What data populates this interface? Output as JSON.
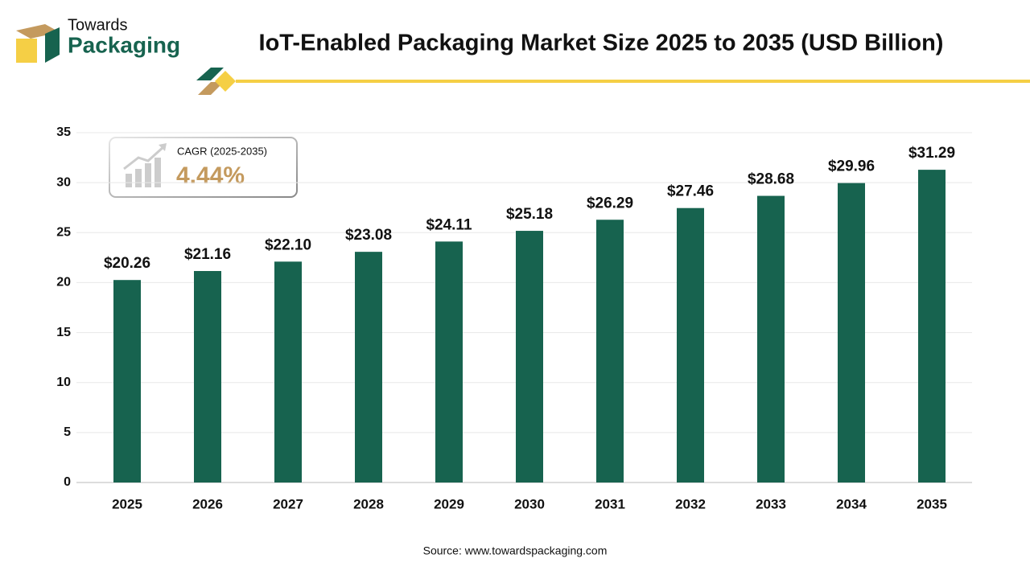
{
  "logo": {
    "line1": "Towards",
    "line2": "Packaging"
  },
  "chart_data": {
    "type": "bar",
    "title": "IoT-Enabled Packaging Market Size 2025 to 2035 (USD Billion)",
    "categories": [
      "2025",
      "2026",
      "2027",
      "2028",
      "2029",
      "2030",
      "2031",
      "2032",
      "2033",
      "2034",
      "2035"
    ],
    "values": [
      20.26,
      21.16,
      22.1,
      23.08,
      24.11,
      25.18,
      26.29,
      27.46,
      28.68,
      29.96,
      31.29
    ],
    "value_labels": [
      "$20.26",
      "$21.16",
      "$22.10",
      "$23.08",
      "$24.11",
      "$25.18",
      "$26.29",
      "$27.46",
      "$28.68",
      "$29.96",
      "$31.29"
    ],
    "color": "#17634f",
    "ylim": [
      0,
      35
    ],
    "yticks": [
      0,
      5,
      10,
      15,
      20,
      25,
      30,
      35
    ],
    "grid": true,
    "annotation": {
      "label": "CAGR (2025-2035)",
      "value": "4.44%"
    }
  },
  "source": "Source: www.towardspackaging.com"
}
